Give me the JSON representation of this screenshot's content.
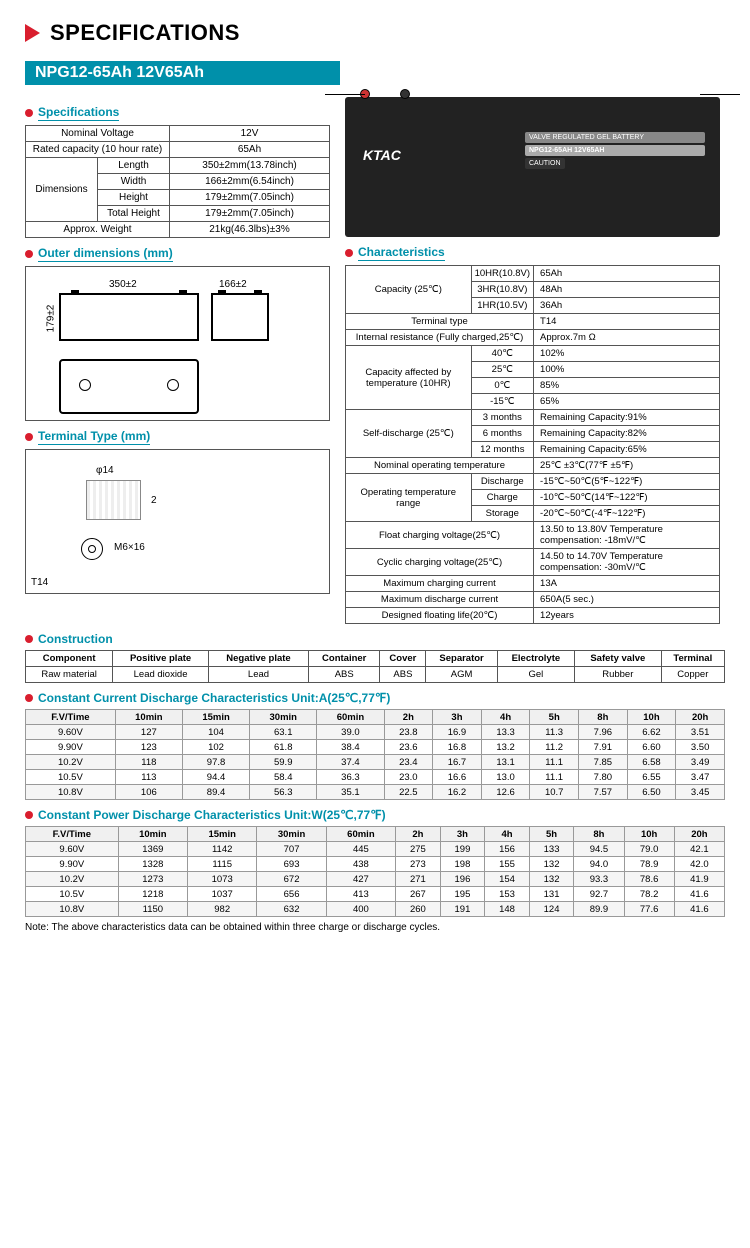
{
  "header": "SPECIFICATIONS",
  "model": "NPG12-65Ah 12V65Ah",
  "spec": {
    "title": "Specifications",
    "rows": [
      [
        "Nominal Voltage",
        "",
        "12V"
      ],
      [
        "Rated capacity (10 hour rate)",
        "",
        "65Ah"
      ],
      [
        "Dimensions",
        "Length",
        "350±2mm(13.78inch)"
      ],
      [
        "",
        "Width",
        "166±2mm(6.54inch)"
      ],
      [
        "",
        "Height",
        "179±2mm(7.05inch)"
      ],
      [
        "",
        "Total Height",
        "179±2mm(7.05inch)"
      ],
      [
        "Approx. Weight",
        "",
        "21kg(46.3lbs)±3%"
      ]
    ]
  },
  "outer_dims": {
    "title": "Outer dimensions  (mm)",
    "d350": "350±2",
    "d166": "166±2",
    "d179": "179±2"
  },
  "term_type": {
    "title": "Terminal Type (mm)",
    "phi": "φ14",
    "m": "M6×16",
    "t": "T14",
    "two": "2"
  },
  "prod": {
    "brand": "KTAC",
    "tag": "VALVE REGULATED GEL BATTERY",
    "model": "NPG12-65AH  12V65AH",
    "caution": "CAUTION"
  },
  "char": {
    "title": "Characteristics",
    "rows": [
      [
        {
          "t": "Capacity (25℃)",
          "rs": 3
        },
        "10HR(10.8V)",
        "65Ah"
      ],
      [
        null,
        "3HR(10.8V)",
        "48Ah"
      ],
      [
        null,
        "1HR(10.5V)",
        "36Ah"
      ],
      [
        {
          "t": "Terminal type",
          "cs": 2
        },
        null,
        "T14"
      ],
      [
        {
          "t": "Internal resistance (Fully charged,25℃)",
          "cs": 2
        },
        null,
        "Approx.7m Ω"
      ],
      [
        {
          "t": "Capacity affected by temperature (10HR)",
          "rs": 4
        },
        "40℃",
        "102%"
      ],
      [
        null,
        "25℃",
        "100%"
      ],
      [
        null,
        "0℃",
        "85%"
      ],
      [
        null,
        "-15℃",
        "65%"
      ],
      [
        {
          "t": "Self-discharge (25℃)",
          "rs": 3
        },
        "3 months",
        "Remaining Capacity:91%"
      ],
      [
        null,
        "6 months",
        "Remaining Capacity:82%"
      ],
      [
        null,
        "12 months",
        "Remaining Capacity:65%"
      ],
      [
        {
          "t": "Nominal operating temperature",
          "cs": 2
        },
        null,
        "25℃ ±3℃(77℉ ±5℉)"
      ],
      [
        {
          "t": "Operating temperature range",
          "rs": 3
        },
        "Discharge",
        "-15℃~50℃(5℉~122℉)"
      ],
      [
        null,
        "Charge",
        "-10℃~50℃(14℉~122℉)"
      ],
      [
        null,
        "Storage",
        "-20℃~50℃(-4℉~122℉)"
      ],
      [
        {
          "t": "Float charging voltage(25℃)",
          "cs": 2
        },
        null,
        "13.50 to 13.80V Temperature compensation: -18mV/℃"
      ],
      [
        {
          "t": "Cyclic charging voltage(25℃)",
          "cs": 2
        },
        null,
        "14.50 to 14.70V Temperature compensation: -30mV/℃"
      ],
      [
        {
          "t": "Maximum charging current",
          "cs": 2
        },
        null,
        "13A"
      ],
      [
        {
          "t": "Maximum discharge current",
          "cs": 2
        },
        null,
        "650A(5 sec.)"
      ],
      [
        {
          "t": "Designed floating life(20℃)",
          "cs": 2
        },
        null,
        "12years"
      ]
    ]
  },
  "constr": {
    "title": "Construction",
    "h": [
      "Component",
      "Positive plate",
      "Negative plate",
      "Container",
      "Cover",
      "Separator",
      "Electrolyte",
      "Safety valve",
      "Terminal"
    ],
    "r": [
      "Raw material",
      "Lead dioxide",
      "Lead",
      "ABS",
      "ABS",
      "AGM",
      "Gel",
      "Rubber",
      "Copper"
    ]
  },
  "cc": {
    "title": "Constant Current Discharge Characteristics   Unit:A(25℃,77℉)",
    "h": [
      "F.V/Time",
      "10min",
      "15min",
      "30min",
      "60min",
      "2h",
      "3h",
      "4h",
      "5h",
      "8h",
      "10h",
      "20h"
    ],
    "rows": [
      [
        "9.60V",
        "127",
        "104",
        "63.1",
        "39.0",
        "23.8",
        "16.9",
        "13.3",
        "11.3",
        "7.96",
        "6.62",
        "3.51"
      ],
      [
        "9.90V",
        "123",
        "102",
        "61.8",
        "38.4",
        "23.6",
        "16.8",
        "13.2",
        "11.2",
        "7.91",
        "6.60",
        "3.50"
      ],
      [
        "10.2V",
        "118",
        "97.8",
        "59.9",
        "37.4",
        "23.4",
        "16.7",
        "13.1",
        "11.1",
        "7.85",
        "6.58",
        "3.49"
      ],
      [
        "10.5V",
        "113",
        "94.4",
        "58.4",
        "36.3",
        "23.0",
        "16.6",
        "13.0",
        "11.1",
        "7.80",
        "6.55",
        "3.47"
      ],
      [
        "10.8V",
        "106",
        "89.4",
        "56.3",
        "35.1",
        "22.5",
        "16.2",
        "12.6",
        "10.7",
        "7.57",
        "6.50",
        "3.45"
      ]
    ]
  },
  "cp": {
    "title": "Constant Power Discharge Characteristics   Unit:W(25℃,77℉)",
    "h": [
      "F.V/Time",
      "10min",
      "15min",
      "30min",
      "60min",
      "2h",
      "3h",
      "4h",
      "5h",
      "8h",
      "10h",
      "20h"
    ],
    "rows": [
      [
        "9.60V",
        "1369",
        "1142",
        "707",
        "445",
        "275",
        "199",
        "156",
        "133",
        "94.5",
        "79.0",
        "42.1"
      ],
      [
        "9.90V",
        "1328",
        "1115",
        "693",
        "438",
        "273",
        "198",
        "155",
        "132",
        "94.0",
        "78.9",
        "42.0"
      ],
      [
        "10.2V",
        "1273",
        "1073",
        "672",
        "427",
        "271",
        "196",
        "154",
        "132",
        "93.3",
        "78.6",
        "41.9"
      ],
      [
        "10.5V",
        "1218",
        "1037",
        "656",
        "413",
        "267",
        "195",
        "153",
        "131",
        "92.7",
        "78.2",
        "41.6"
      ],
      [
        "10.8V",
        "1150",
        "982",
        "632",
        "400",
        "260",
        "191",
        "148",
        "124",
        "89.9",
        "77.6",
        "41.6"
      ]
    ]
  },
  "note": "Note: The above characteristics data can be obtained within three charge or discharge cycles."
}
